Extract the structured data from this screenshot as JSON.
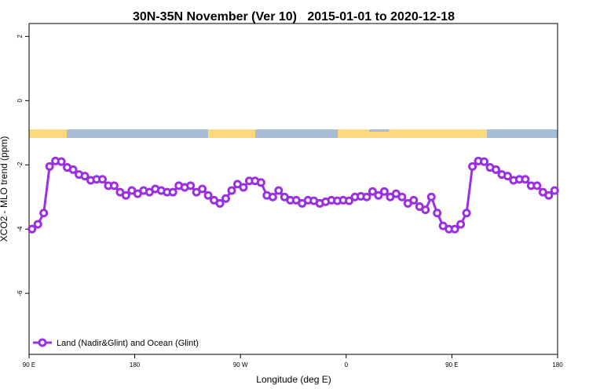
{
  "chart_data": {
    "type": "line",
    "title": "30N-35N November (Ver 10)   2015-01-01 to 2020-12-18",
    "x_label": "Longitude (deg E)",
    "y_label": "XCO2 - MLO trend (ppm)",
    "legend": "bottom-left",
    "xlim": [
      90,
      540
    ],
    "ylim": [
      -7.9,
      2.4
    ],
    "xticks": [
      {
        "value": 90,
        "label": "90 E"
      },
      {
        "value": 180,
        "label": "180"
      },
      {
        "value": 270,
        "label": "90 W"
      },
      {
        "value": 360,
        "label": "0"
      },
      {
        "value": 450,
        "label": "90 E"
      },
      {
        "value": 540,
        "label": "180"
      }
    ],
    "yticks": [
      2,
      0,
      -2,
      -4,
      -6
    ],
    "x": [
      92.5,
      97.5,
      102.5,
      107.5,
      112.5,
      117.5,
      122.5,
      127.5,
      132.5,
      137.5,
      142.5,
      147.5,
      152.5,
      157.5,
      162.5,
      167.5,
      172.5,
      177.5,
      182.5,
      187.5,
      192.5,
      197.5,
      202.5,
      207.5,
      212.5,
      217.5,
      222.5,
      227.5,
      232.5,
      237.5,
      242.5,
      247.5,
      252.5,
      257.5,
      262.5,
      267.5,
      272.5,
      277.5,
      282.5,
      287.5,
      292.5,
      297.5,
      302.5,
      307.5,
      312.5,
      317.5,
      322.5,
      327.5,
      332.5,
      337.5,
      342.5,
      347.5,
      352.5,
      357.5,
      362.5,
      367.5,
      372.5,
      377.5,
      382.5,
      387.5,
      392.5,
      397.5,
      402.5,
      407.5,
      412.5,
      417.5,
      422.5,
      427.5,
      432.5,
      437.5,
      442.5,
      447.5,
      452.5,
      457.5,
      462.5,
      467.5,
      472.5,
      477.5,
      482.5,
      487.5,
      492.5,
      497.5,
      502.5,
      507.5,
      512.5,
      517.5,
      522.5,
      527.5,
      532.5,
      537.5
    ],
    "series": [
      {
        "name": "Land (Nadir&Glint) and Ocean (Glint)",
        "color": "#9b30e0",
        "values": [
          -4.0,
          -3.85,
          -3.5,
          -2.05,
          -1.88,
          -1.9,
          -2.08,
          -2.15,
          -2.3,
          -2.35,
          -2.48,
          -2.45,
          -2.45,
          -2.65,
          -2.65,
          -2.85,
          -2.95,
          -2.8,
          -2.9,
          -2.8,
          -2.85,
          -2.75,
          -2.8,
          -2.85,
          -2.85,
          -2.65,
          -2.7,
          -2.65,
          -2.85,
          -2.75,
          -2.95,
          -3.1,
          -3.2,
          -3.05,
          -2.8,
          -2.6,
          -2.7,
          -2.5,
          -2.5,
          -2.55,
          -2.95,
          -3.0,
          -2.8,
          -3.0,
          -3.1,
          -3.1,
          -3.2,
          -3.1,
          -3.12,
          -3.2,
          -3.15,
          -3.1,
          -3.12,
          -3.1,
          -3.12,
          -3.0,
          -2.98,
          -3.0,
          -2.83,
          -2.95,
          -2.83,
          -3.0,
          -2.9,
          -3.0,
          -3.2,
          -3.1,
          -3.3,
          -3.4,
          -3.0,
          -3.5,
          -3.9,
          -4.0,
          -4.0,
          -3.85,
          -3.5,
          -2.05,
          -1.88,
          -1.9,
          -2.08,
          -2.15,
          -2.3,
          -2.35,
          -2.48,
          -2.45,
          -2.45,
          -2.65,
          -2.65,
          -2.85,
          -2.95,
          -2.8
        ]
      }
    ]
  }
}
